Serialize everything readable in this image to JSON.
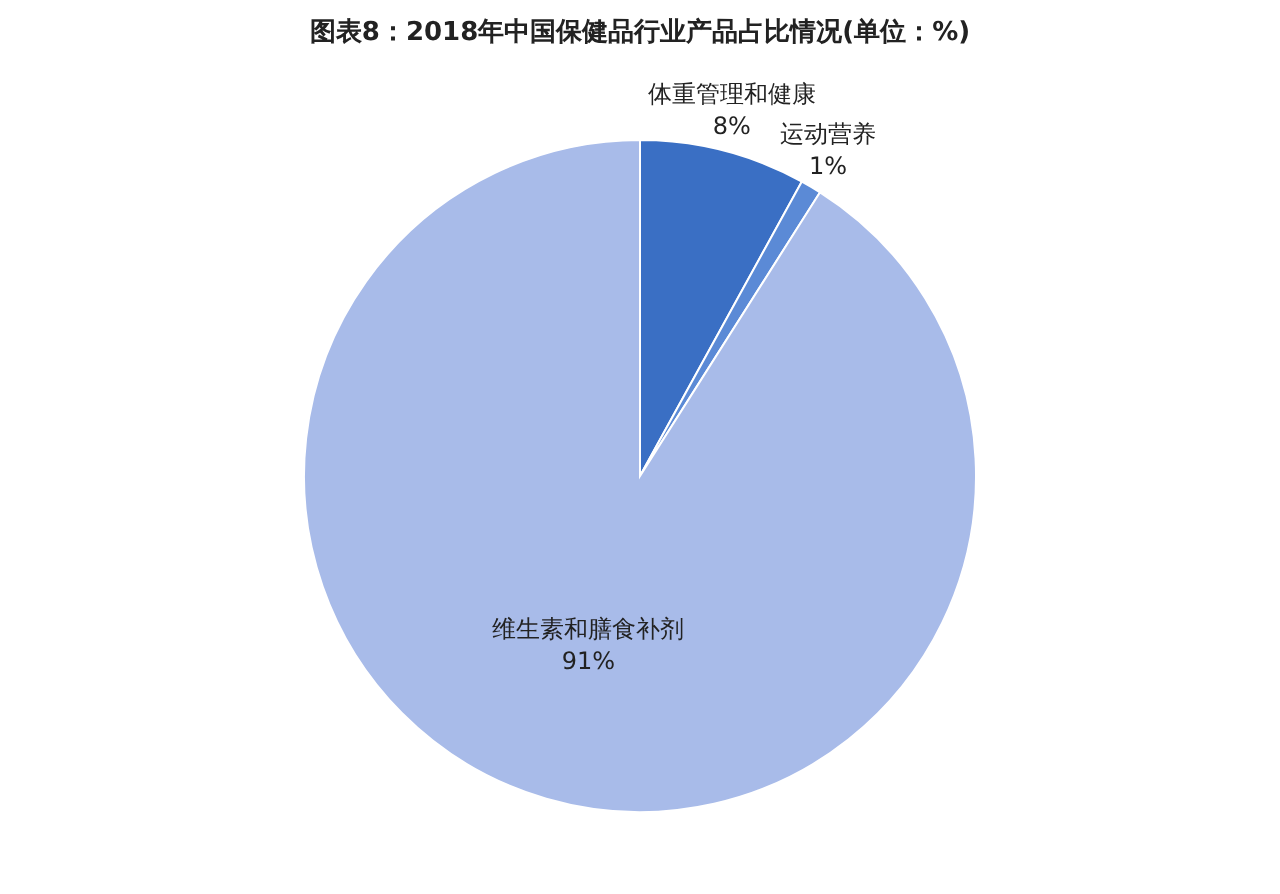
{
  "chart_data": {
    "type": "pie",
    "title": "图表8：2018年中国保健品行业产品占比情况(单位：%)",
    "categories": [
      "体重管理和健康",
      "运动营养",
      "维生素和膳食补剂"
    ],
    "values": [
      8,
      1,
      91
    ],
    "colors": [
      "#3a6fc4",
      "#5b8ad6",
      "#a8bbe9"
    ],
    "value_labels": [
      "8%",
      "1%",
      "91%"
    ]
  }
}
